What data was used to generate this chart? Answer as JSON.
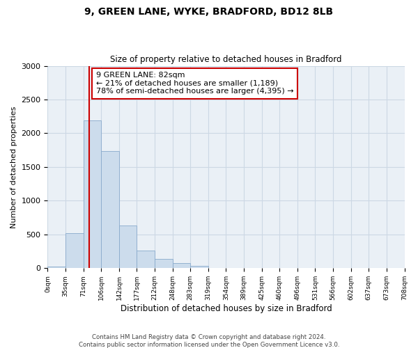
{
  "title": "9, GREEN LANE, WYKE, BRADFORD, BD12 8LB",
  "subtitle": "Size of property relative to detached houses in Bradford",
  "xlabel": "Distribution of detached houses by size in Bradford",
  "ylabel": "Number of detached properties",
  "bin_edges": [
    0,
    35,
    71,
    106,
    142,
    177,
    212,
    248,
    283,
    319,
    354,
    389,
    425,
    460,
    496,
    531,
    566,
    602,
    637,
    673,
    708
  ],
  "bin_labels": [
    "0sqm",
    "35sqm",
    "71sqm",
    "106sqm",
    "142sqm",
    "177sqm",
    "212sqm",
    "248sqm",
    "283sqm",
    "319sqm",
    "354sqm",
    "389sqm",
    "425sqm",
    "460sqm",
    "496sqm",
    "531sqm",
    "566sqm",
    "602sqm",
    "637sqm",
    "673sqm",
    "708sqm"
  ],
  "bar_heights": [
    25,
    520,
    2190,
    1740,
    630,
    265,
    135,
    75,
    30,
    5,
    5,
    0,
    0,
    0,
    0,
    0,
    0,
    0,
    0,
    0
  ],
  "bar_color": "#ccdcec",
  "bar_edge_color": "#88aacc",
  "ylim": [
    0,
    3000
  ],
  "yticks": [
    0,
    500,
    1000,
    1500,
    2000,
    2500,
    3000
  ],
  "vline_x": 82,
  "vline_color": "#cc0000",
  "annotation_line1": "9 GREEN LANE: 82sqm",
  "annotation_line2": "← 21% of detached houses are smaller (1,189)",
  "annotation_line3": "78% of semi-detached houses are larger (4,395) →",
  "annotation_box_color": "#ffffff",
  "annotation_box_edge": "#cc0000",
  "footer_text": "Contains HM Land Registry data © Crown copyright and database right 2024.\nContains public sector information licensed under the Open Government Licence v3.0.",
  "grid_color": "#ccd8e4",
  "background_color": "#eaf0f6"
}
